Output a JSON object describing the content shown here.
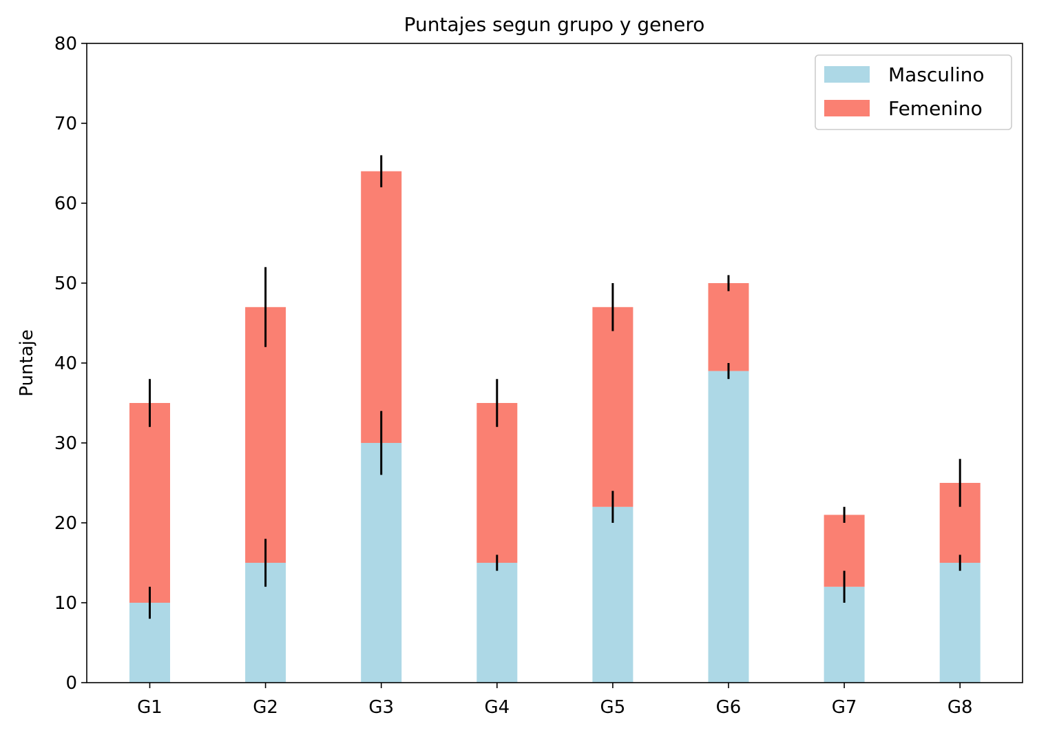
{
  "chart_data": {
    "type": "bar",
    "stacked": true,
    "title": "Puntajes segun grupo y genero",
    "xlabel": "",
    "ylabel": "Puntaje",
    "categories": [
      "G1",
      "G2",
      "G3",
      "G4",
      "G5",
      "G6",
      "G7",
      "G8"
    ],
    "series": [
      {
        "name": "Masculino",
        "color": "#add8e6",
        "values": [
          10,
          15,
          30,
          15,
          22,
          39,
          12,
          15
        ],
        "errors": [
          2,
          3,
          4,
          1,
          2,
          1,
          2,
          1
        ]
      },
      {
        "name": "Femenino",
        "color": "#fa8072",
        "values": [
          25,
          32,
          34,
          20,
          25,
          11,
          9,
          10
        ],
        "errors": [
          3,
          5,
          2,
          3,
          3,
          1,
          1,
          3
        ]
      }
    ],
    "ylim": [
      0,
      80
    ],
    "yticks": [
      0,
      10,
      20,
      30,
      40,
      50,
      60,
      70,
      80
    ],
    "grid": false,
    "legend_position": "top-right"
  }
}
